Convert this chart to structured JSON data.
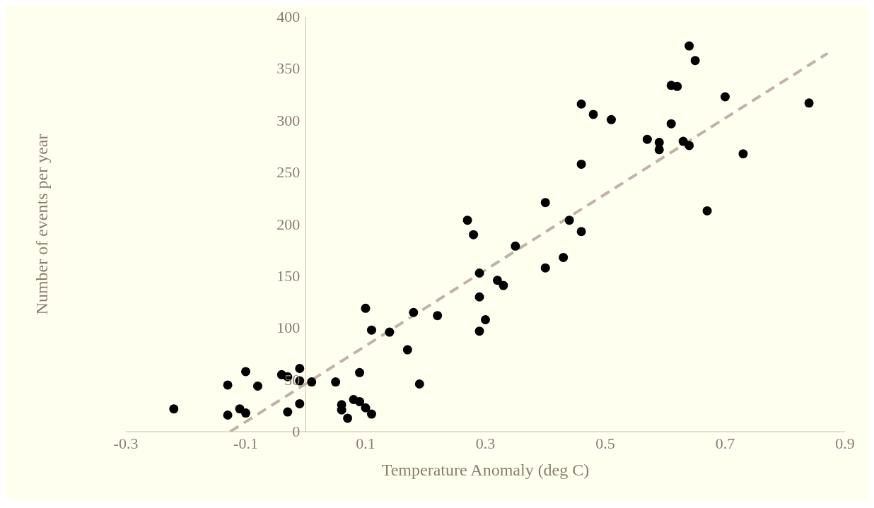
{
  "chart_data": {
    "type": "scatter",
    "xlabel": "Temperature Anomaly (deg C)",
    "ylabel": "Number of events per year",
    "xlim": [
      -0.3,
      0.9
    ],
    "xticks": [
      -0.3,
      -0.1,
      0.1,
      0.3,
      0.5,
      0.7,
      0.9
    ],
    "ylim": [
      0,
      400
    ],
    "yticks": [
      0,
      50,
      100,
      150,
      200,
      250,
      300,
      350,
      400
    ],
    "series": [
      {
        "color": "#000000",
        "marker": "circle",
        "x": [
          -0.22,
          -0.13,
          -0.13,
          -0.1,
          -0.08,
          -0.11,
          -0.1,
          -0.04,
          -0.03,
          -0.01,
          -0.01,
          0.01,
          -0.01,
          -0.03,
          0.05,
          0.09,
          0.06,
          0.06,
          0.07,
          0.08,
          0.09,
          0.1,
          0.11,
          0.1,
          0.11,
          0.14,
          0.17,
          0.19,
          0.18,
          0.22,
          0.27,
          0.28,
          0.44,
          0.46,
          0.35,
          0.29,
          0.32,
          0.33,
          0.4,
          0.43,
          0.29,
          0.3,
          0.29,
          0.64,
          0.65,
          0.61,
          0.62,
          0.46,
          0.48,
          0.51,
          0.7,
          0.84,
          0.57,
          0.59,
          0.59,
          0.61,
          0.63,
          0.64,
          0.73,
          0.46,
          0.67,
          0.4
        ],
        "values": [
          22,
          45,
          16,
          58,
          44,
          22,
          18,
          55,
          53,
          61,
          49,
          48,
          27,
          19,
          48,
          57,
          26,
          21,
          13,
          31,
          29,
          23,
          17,
          119,
          98,
          96,
          79,
          46,
          115,
          112,
          204,
          190,
          204,
          193,
          179,
          153,
          146,
          141,
          158,
          168,
          130,
          108,
          97,
          372,
          358,
          334,
          333,
          316,
          306,
          301,
          323,
          317,
          282,
          279,
          272,
          297,
          280,
          276,
          268,
          258,
          213,
          221
        ]
      },
      {
        "type": "line",
        "color": "#c0b3a5",
        "marker": "none",
        "line_style": "dashed",
        "x": [
          -0.126,
          0.871
        ],
        "values": [
          0,
          365
        ]
      }
    ]
  }
}
